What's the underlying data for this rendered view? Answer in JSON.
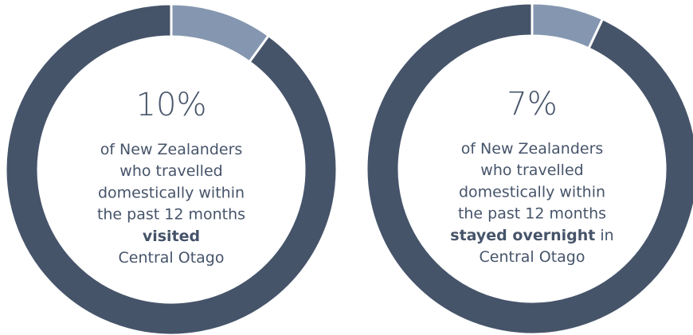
{
  "chart_data": [
    {
      "type": "pie",
      "values": [
        10,
        90
      ],
      "value_labels": [
        "10%",
        null
      ],
      "colors": [
        "#8597b0",
        "#46546a"
      ],
      "lines": [
        [
          {
            "text": "of New Zealanders"
          }
        ],
        [
          {
            "text": "who travelled"
          }
        ],
        [
          {
            "text": "domestically within"
          }
        ],
        [
          {
            "text": "the past 12 months"
          }
        ],
        [
          {
            "text": "visited",
            "bold": true
          }
        ],
        [
          {
            "text": "Central Otago"
          }
        ]
      ]
    },
    {
      "type": "pie",
      "values": [
        7,
        93
      ],
      "value_labels": [
        "7%",
        null
      ],
      "colors": [
        "#8597b0",
        "#46546a"
      ],
      "lines": [
        [
          {
            "text": "of New Zealanders"
          }
        ],
        [
          {
            "text": "who travelled"
          }
        ],
        [
          {
            "text": "domestically within"
          }
        ],
        [
          {
            "text": "the past 12 months"
          }
        ],
        [
          {
            "text": "stayed overnight",
            "bold": true
          },
          {
            "text": " in"
          }
        ],
        [
          {
            "text": "Central Otago"
          }
        ]
      ]
    }
  ]
}
